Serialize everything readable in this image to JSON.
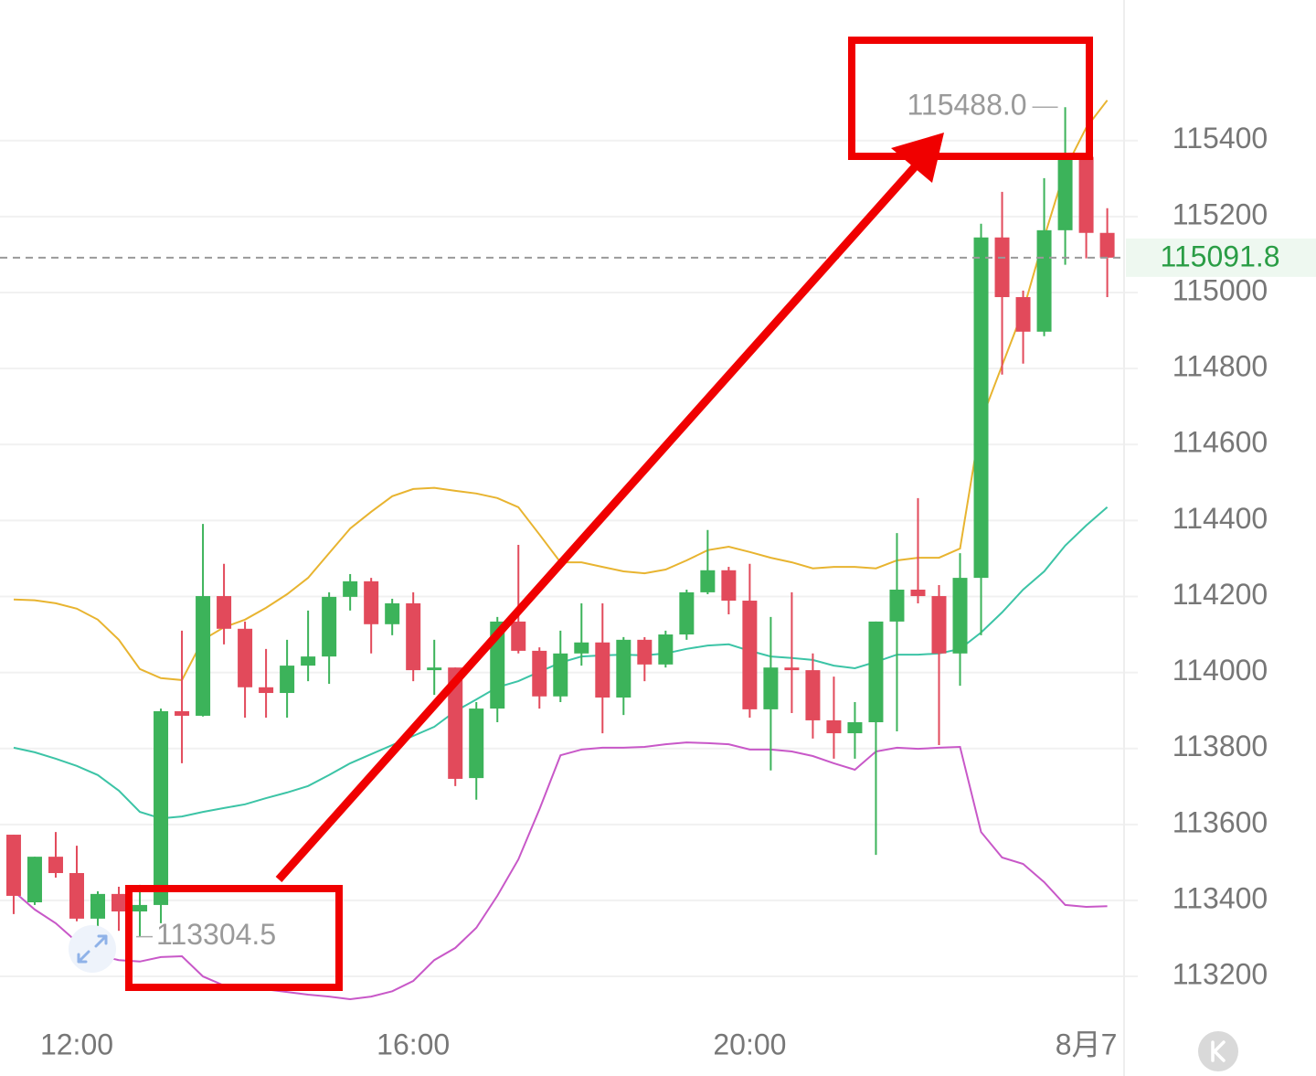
{
  "chart_data": {
    "type": "candlestick",
    "xlim": [
      -0.65,
      52.8
    ],
    "ylim": [
      113075,
      115770
    ],
    "yticks": [
      113200,
      113400,
      113600,
      113800,
      114000,
      114200,
      114400,
      114600,
      114800,
      115000,
      115200,
      115400
    ],
    "xticks": [
      {
        "value": 3,
        "label": "12:00"
      },
      {
        "value": 19,
        "label": "16:00"
      },
      {
        "value": 35,
        "label": "20:00"
      },
      {
        "value": 51,
        "label": "8月7"
      }
    ],
    "grid": true,
    "up_color": "#3cb35a",
    "down_color": "#e24a5b",
    "open": [
      113573,
      113395,
      113515,
      113472,
      113352,
      113417,
      113371,
      113388,
      113898,
      113886,
      114201,
      114115,
      113961,
      113946,
      114018,
      114042,
      114199,
      114240,
      114127,
      114182,
      114006,
      114013,
      113722,
      113905,
      114134,
      114057,
      113937,
      114050,
      114079,
      113934,
      114086,
      114021,
      114100,
      114211,
      114269,
      114189,
      113903,
      114013,
      114006,
      113874,
      113840,
      113869,
      114134,
      114218,
      114201,
      114050,
      114249,
      115145,
      114988,
      114897,
      115164,
      115357,
      115157
    ],
    "high": [
      113573,
      113515,
      113580,
      113544,
      113424,
      113436,
      113441,
      113905,
      114110,
      114391,
      114286,
      114134,
      114062,
      114086,
      114163,
      114211,
      114259,
      114249,
      114194,
      114211,
      114086,
      114013,
      113922,
      114146,
      114336,
      114066,
      114110,
      114182,
      114182,
      114093,
      114093,
      114110,
      114218,
      114375,
      114278,
      114286,
      114146,
      114211,
      114050,
      113989,
      113922,
      114134,
      114367,
      114459,
      114230,
      114314,
      115181,
      115265,
      115005,
      115301,
      115488,
      115357,
      115222
    ],
    "low": [
      113364,
      113388,
      113460,
      113345,
      113316,
      113320,
      113304.5,
      113340,
      113761,
      113884,
      114074,
      113881,
      113881,
      113881,
      113977,
      113970,
      114163,
      114050,
      114098,
      113977,
      113941,
      113701,
      113665,
      113869,
      114050,
      113905,
      113922,
      114018,
      113840,
      113888,
      113977,
      114013,
      114086,
      114206,
      114153,
      113881,
      113742,
      113893,
      113826,
      113773,
      113773,
      113520,
      113845,
      114182,
      113809,
      113965,
      114098,
      114784,
      114813,
      114885,
      115073,
      115090,
      114988
    ],
    "close": [
      113412,
      113515,
      113472,
      113352,
      113417,
      113371,
      113388,
      113898,
      113886,
      114201,
      114115,
      113961,
      113946,
      114018,
      114042,
      114199,
      114240,
      114127,
      114182,
      114006,
      114013,
      113720,
      113905,
      114134,
      114057,
      113937,
      114050,
      114079,
      113934,
      114086,
      114021,
      114100,
      114211,
      114269,
      114189,
      113903,
      114013,
      114006,
      113874,
      113840,
      113869,
      114134,
      114218,
      114201,
      114050,
      114249,
      115145,
      114988,
      114897,
      115164,
      115357,
      115157,
      115091.8
    ],
    "lines": [
      {
        "color": "#e8b430",
        "values": [
          114192,
          114190,
          114182,
          114168,
          114139,
          114086,
          114009,
          113985,
          113980,
          114086,
          114119,
          114139,
          114170,
          114206,
          114249,
          114314,
          114379,
          114423,
          114464,
          114483,
          114486,
          114478,
          114471,
          114459,
          114435,
          114363,
          114290,
          114290,
          114278,
          114266,
          114261,
          114271,
          114295,
          114322,
          114331,
          114317,
          114302,
          114290,
          114274,
          114278,
          114278,
          114274,
          114295,
          114302,
          114302,
          114326,
          114663,
          114808,
          114952,
          115145,
          115325,
          115434,
          115506
        ]
      },
      {
        "color": "#3cc4a6",
        "values": [
          113802,
          113790,
          113773,
          113754,
          113730,
          113689,
          113633,
          113616,
          113621,
          113633,
          113643,
          113653,
          113669,
          113684,
          113701,
          113730,
          113761,
          113785,
          113809,
          113833,
          113857,
          113898,
          113929,
          113961,
          113977,
          114002,
          114026,
          114042,
          114045,
          114047,
          114045,
          114050,
          114062,
          114071,
          114074,
          114057,
          114042,
          114038,
          114033,
          114018,
          114011,
          114028,
          114047,
          114047,
          114050,
          114062,
          114105,
          114158,
          114218,
          114266,
          114334,
          114387,
          114435
        ]
      },
      {
        "color": "#c858c8",
        "values": [
          113424,
          113376,
          113340,
          113291,
          113255,
          113243,
          113239,
          113251,
          113253,
          113200,
          113176,
          113171,
          113166,
          113159,
          113152,
          113147,
          113140,
          113147,
          113161,
          113188,
          113243,
          113275,
          113328,
          113412,
          113508,
          113640,
          113782,
          113797,
          113802,
          113802,
          113804,
          113811,
          113816,
          113814,
          113811,
          113797,
          113797,
          113792,
          113780,
          113761,
          113744,
          113792,
          113802,
          113799,
          113802,
          113804,
          113580,
          113513,
          113496,
          113448,
          113388,
          113383,
          113385
        ]
      }
    ],
    "annotations": [
      {
        "index": 50,
        "value": 115488,
        "label": "115488.0",
        "side": "left"
      },
      {
        "index": 6,
        "value": 113304.5,
        "label": "113304.5",
        "side": "right"
      }
    ],
    "last_price": {
      "value": 115091.8,
      "color": "#2a9d45"
    }
  }
}
